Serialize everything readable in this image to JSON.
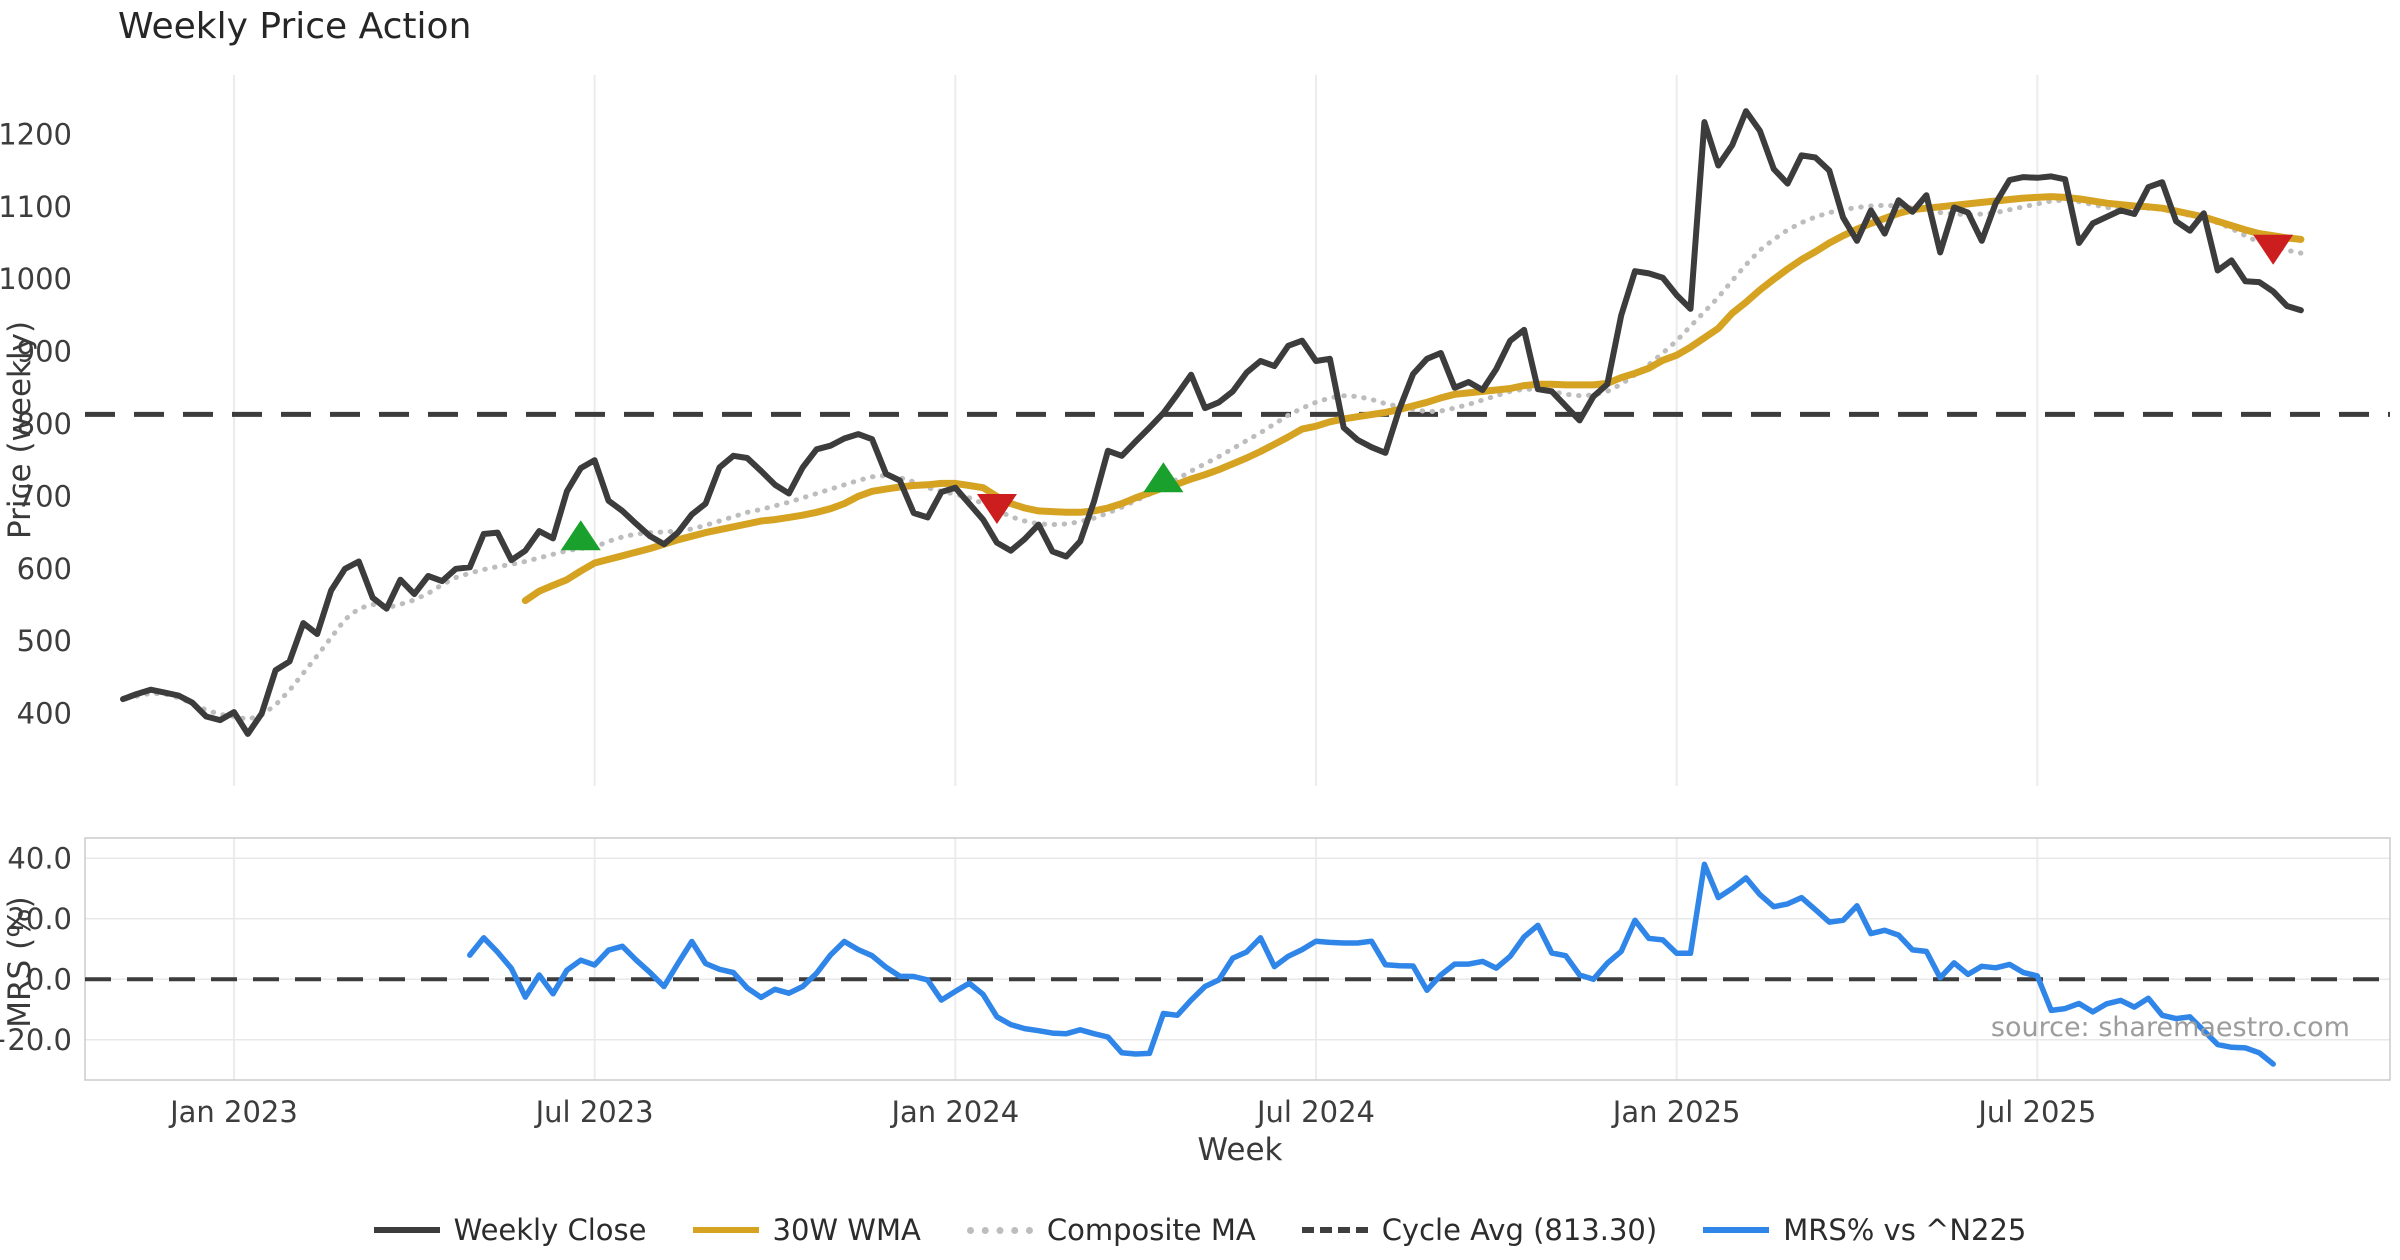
{
  "header": {
    "title": "Weekly Price Action"
  },
  "axes": {
    "price_label": "Price (weekly)",
    "mrs_label": "MRS (%)",
    "week_label": "Week",
    "price_ticks": [
      {
        "v": 400,
        "label": "400"
      },
      {
        "v": 500,
        "label": "500"
      },
      {
        "v": 600,
        "label": "600"
      },
      {
        "v": 700,
        "label": "700"
      },
      {
        "v": 800,
        "label": "800"
      },
      {
        "v": 900,
        "label": "900"
      },
      {
        "v": 1000,
        "label": "1000"
      },
      {
        "v": 1100,
        "label": "1100"
      },
      {
        "v": 1200,
        "label": "1200"
      }
    ],
    "mrs_ticks": [
      {
        "v": 40,
        "label": "40.0"
      },
      {
        "v": 20,
        "label": "20.0"
      },
      {
        "v": 0,
        "label": "0.0"
      },
      {
        "v": -20,
        "label": "−20.0"
      }
    ],
    "x_ticks": [
      {
        "week": 8,
        "label": "Jan 2023"
      },
      {
        "week": 34,
        "label": "Jul 2023"
      },
      {
        "week": 60,
        "label": "Jan 2024"
      },
      {
        "week": 86,
        "label": "Jul 2024"
      },
      {
        "week": 112,
        "label": "Jan 2025"
      },
      {
        "week": 138,
        "label": "Jul 2025"
      }
    ]
  },
  "legend": [
    {
      "label": "Weekly Close",
      "color": "#3c3c3c",
      "style": "solid"
    },
    {
      "label": "30W WMA",
      "color": "#d5a321",
      "style": "solid"
    },
    {
      "label": "Composite MA",
      "color": "#bdbdbd",
      "style": "dotted"
    },
    {
      "label": "Cycle Avg (813.30)",
      "color": "#3f3f3f",
      "style": "dashed"
    },
    {
      "label": "MRS% vs ^N225",
      "color": "#2f86e8",
      "style": "solid"
    }
  ],
  "source": {
    "text": "source: sharemaestro.com"
  },
  "colors": {
    "weekly_close": "#3c3c3c",
    "wma": "#d5a321",
    "composite": "#bdbdbd",
    "cycle_avg": "#3c3c3c",
    "mrs": "#2f86e8",
    "buy": "#1aa02c",
    "sell": "#cc1e1e",
    "grid": "#ececec",
    "mrs_grid": "#e8e8e8",
    "panel_border": "#cccccc"
  },
  "chart_data": {
    "type": "line",
    "total_weeks": 158,
    "cycle_avg_value": 813.3,
    "panels": [
      {
        "name": "price",
        "ylabel": "Price (weekly)",
        "ylim": [
          300,
          1282
        ],
        "grid": "vertical-only",
        "series": [
          {
            "name": "Weekly Close",
            "style": "solid",
            "width": 6,
            "color": "#3c3c3c",
            "start_week": 0,
            "values": [
              420,
              427,
              433,
              429,
              425,
              415,
              396,
              391,
              402,
              372,
              400,
              460,
              472,
              525,
              510,
              570,
              600,
              610,
              560,
              545,
              585,
              565,
              590,
              583,
              600,
              602,
              648,
              650,
              612,
              625,
              652,
              642,
              707,
              739,
              750,
              694,
              680,
              662,
              645,
              634,
              650,
              675,
              690,
              740,
              756,
              753,
              735,
              716,
              704,
              740,
              765,
              770,
              780,
              786,
              779,
              731,
              722,
              677,
              671,
              706,
              712,
              690,
              668,
              636,
              625,
              641,
              661,
              624,
              617,
              638,
              693,
              763,
              756,
              776,
              795,
              815,
              841,
              868,
              822,
              830,
              845,
              871,
              887,
              880,
              908,
              915,
              887,
              890,
              795,
              778,
              768,
              760,
              820,
              869,
              890,
              898,
              850,
              858,
              847,
              876,
              915,
              930,
              848,
              845,
              825,
              805,
              838,
              855,
              950,
              1011,
              1008,
              1002,
              978,
              959,
              1217,
              1157,
              1185,
              1232,
              1205,
              1152,
              1132,
              1171,
              1168,
              1150,
              1085,
              1053,
              1095,
              1063,
              1109,
              1093,
              1116,
              1037,
              1099,
              1092,
              1053,
              1105,
              1137,
              1141,
              1140,
              1142,
              1138,
              1050,
              1077,
              1086,
              1095,
              1090,
              1127,
              1134,
              1080,
              1067,
              1091,
              1012,
              1026,
              997,
              996,
              983,
              963,
              957
            ]
          },
          {
            "name": "30W WMA",
            "style": "solid",
            "width": 7,
            "color": "#d5a321",
            "start_week": 29,
            "values": [
              556,
              569,
              577,
              585,
              597,
              608,
              613,
              618,
              623,
              628,
              634,
              640,
              645,
              650,
              654,
              658,
              662,
              666,
              668,
              671,
              674,
              678,
              683,
              690,
              700,
              707,
              710,
              713,
              715,
              716,
              718,
              718,
              715,
              712,
              700,
              690,
              684,
              680,
              679,
              678,
              678,
              680,
              684,
              690,
              698,
              705,
              712,
              717,
              724,
              730,
              737,
              745,
              753,
              762,
              772,
              782,
              793,
              797,
              803,
              807,
              810,
              813,
              816,
              820,
              825,
              830,
              836,
              841,
              843,
              845,
              847,
              849,
              853,
              855,
              855,
              854,
              854,
              854,
              856,
              864,
              870,
              877,
              888,
              895,
              906,
              919,
              932,
              953,
              968,
              985,
              1000,
              1014,
              1027,
              1038,
              1050,
              1060,
              1069,
              1077,
              1084,
              1091,
              1096,
              1098,
              1100,
              1102,
              1104,
              1106,
              1108,
              1110,
              1112,
              1113,
              1114,
              1113,
              1111,
              1108,
              1105,
              1103,
              1101,
              1100,
              1098,
              1094,
              1090,
              1086,
              1080,
              1074,
              1068,
              1063,
              1060,
              1057,
              1055
            ]
          },
          {
            "name": "Composite MA",
            "style": "dotted",
            "width": 5,
            "color": "#bdbdbd",
            "start_week": 1,
            "values": [
              424,
              428,
              427,
              422,
              414,
              405,
              399,
              396,
              392,
              398,
              412,
              432,
              456,
              480,
              505,
              530,
              545,
              551,
              546,
              551,
              557,
              566,
              578,
              588,
              594,
              599,
              603,
              606,
              610,
              615,
              620,
              625,
              628,
              630,
              638,
              644,
              648,
              650,
              651,
              652,
              655,
              660,
              666,
              672,
              678,
              682,
              687,
              692,
              698,
              704,
              710,
              716,
              722,
              727,
              729,
              726,
              720,
              712,
              707,
              703,
              698,
              690,
              681,
              672,
              666,
              662,
              661,
              662,
              665,
              670,
              677,
              685,
              694,
              703,
              713,
              724,
              735,
              745,
              755,
              766,
              777,
              788,
              800,
              812,
              822,
              830,
              836,
              839,
              838,
              834,
              828,
              824,
              820,
              817,
              818,
              822,
              827,
              833,
              839,
              845,
              848,
              848,
              845,
              841,
              839,
              840,
              845,
              855,
              868,
              882,
              898,
              915,
              935,
              955,
              975,
              998,
              1020,
              1040,
              1055,
              1068,
              1078,
              1086,
              1092,
              1096,
              1099,
              1101,
              1102,
              1101,
              1098,
              1095,
              1092,
              1090,
              1089,
              1090,
              1092,
              1096,
              1100,
              1104,
              1108,
              1109,
              1107,
              1103,
              1099,
              1097,
              1097,
              1098,
              1097,
              1093,
              1088,
              1083,
              1078,
              1070,
              1060,
              1051,
              1045,
              1040,
              1036
            ]
          }
        ],
        "markers": [
          {
            "week": 33,
            "value": 645,
            "type": "buy"
          },
          {
            "week": 63,
            "value": 684,
            "type": "sell"
          },
          {
            "week": 75,
            "value": 725,
            "type": "buy"
          },
          {
            "week": 155,
            "value": 1042,
            "type": "sell"
          }
        ]
      },
      {
        "name": "mrs",
        "ylabel": "MRS (%)",
        "ylim": [
          -33.3,
          46.7
        ],
        "zero_line": 0,
        "series": [
          {
            "name": "MRS% vs ^N225",
            "style": "solid",
            "width": 5.5,
            "color": "#2f86e8",
            "start_week": 25,
            "values": [
              8.0,
              13.7,
              9.0,
              3.6,
              -5.9,
              1.4,
              -4.8,
              3.0,
              6.3,
              4.7,
              9.6,
              10.9,
              6.3,
              2.2,
              -2.4,
              5.2,
              12.5,
              5.2,
              3.3,
              2.2,
              -2.9,
              -6.0,
              -3.3,
              -4.6,
              -2.4,
              2.0,
              8.0,
              12.5,
              9.8,
              7.8,
              4.0,
              1.0,
              0.9,
              -0.2,
              -6.9,
              -4.0,
              -1.3,
              -5.0,
              -12.4,
              -15.0,
              -16.3,
              -17.0,
              -17.8,
              -18.0,
              -16.7,
              -18.0,
              -19.1,
              -24.3,
              -24.7,
              -24.5,
              -11.3,
              -11.9,
              -6.9,
              -2.4,
              -0.2,
              7.0,
              9.0,
              13.7,
              4.2,
              7.6,
              9.8,
              12.6,
              12.2,
              12.0,
              12.0,
              12.6,
              4.8,
              4.5,
              4.4,
              -3.6,
              1.4,
              5.0,
              5.0,
              5.9,
              3.7,
              7.6,
              14.0,
              17.8,
              8.7,
              7.8,
              1.4,
              0.0,
              5.3,
              9.2,
              19.5,
              13.5,
              13.0,
              8.6,
              8.6,
              38.0,
              27.0,
              30.0,
              33.5,
              28.0,
              24.0,
              24.9,
              27.0,
              23.0,
              18.9,
              19.5,
              24.3,
              15.1,
              16.2,
              14.6,
              9.7,
              9.2,
              0.5,
              5.4,
              1.6,
              4.3,
              3.8,
              4.9,
              2.2,
              1.1,
              -10.3,
              -9.7,
              -8.0,
              -10.8,
              -8.1,
              -7.0,
              -9.2,
              -6.3,
              -11.9,
              -13.0,
              -12.4,
              -17.0,
              -21.6,
              -22.5,
              -22.7,
              -24.3,
              -28.0
            ]
          }
        ]
      }
    ]
  }
}
